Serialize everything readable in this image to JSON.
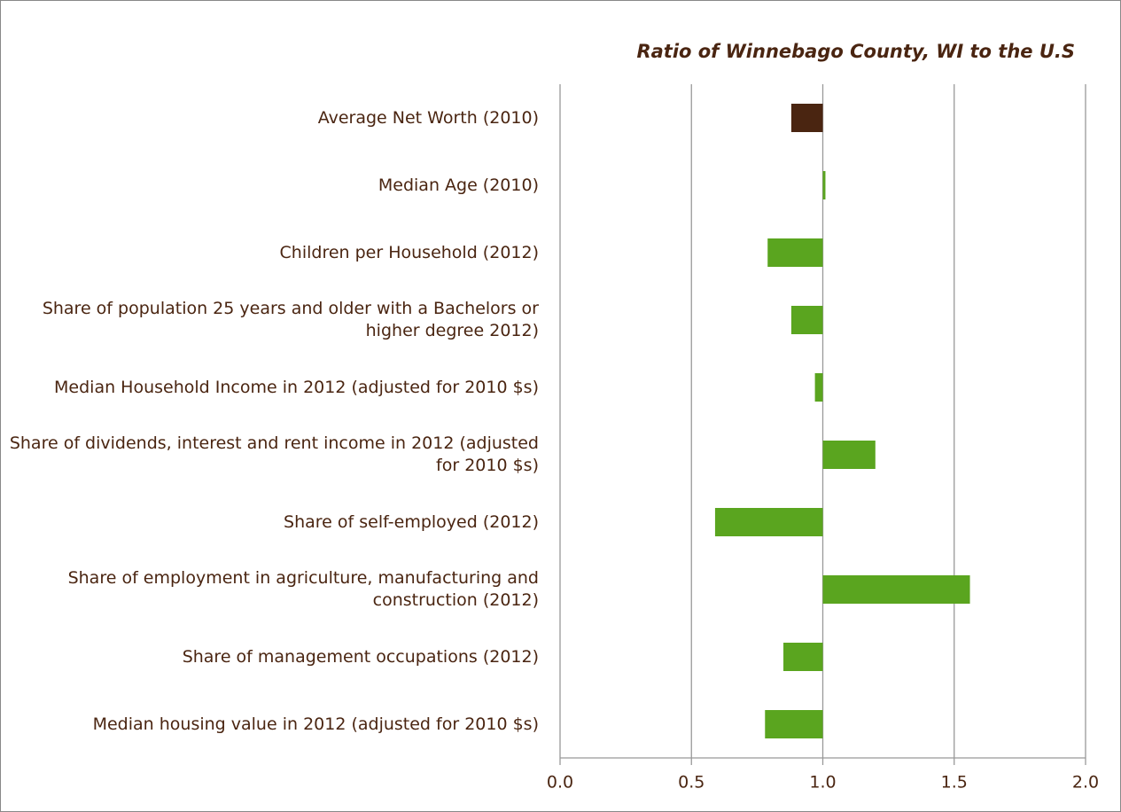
{
  "chart_data": {
    "type": "bar",
    "orientation": "horizontal",
    "title": "Ratio of Winnebago County, WI to the U.S",
    "categories": [
      "Average Net Worth (2010)",
      "Median Age (2010)",
      "Children per Household (2012)",
      "Share of population 25 years and older with a Bachelors or higher degree 2012)",
      "Median Household Income in 2012 (adjusted for 2010 $s)",
      "Share of dividends, interest and rent income in 2012 (adjusted for 2010 $s)",
      "Share of self-employed (2012)",
      "Share of employment in agriculture, manufacturing and construction (2012)",
      "Share of management occupations (2012)",
      "Median housing value in 2012 (adjusted for 2010 $s)"
    ],
    "values": [
      0.88,
      1.01,
      0.79,
      0.88,
      0.97,
      1.2,
      0.59,
      1.56,
      0.85,
      0.78
    ],
    "colors": [
      "#4a2511",
      "#5aa51f",
      "#5aa51f",
      "#5aa51f",
      "#5aa51f",
      "#5aa51f",
      "#5aa51f",
      "#5aa51f",
      "#5aa51f",
      "#5aa51f"
    ],
    "base": 1,
    "xlim": [
      0,
      2
    ],
    "xticks": [
      {
        "value": 0,
        "label": "0.0"
      },
      0.5,
      {
        "value": 1,
        "label": "1.0"
      },
      1.5,
      {
        "value": 2,
        "label": "2.0"
      }
    ],
    "grid": true
  }
}
